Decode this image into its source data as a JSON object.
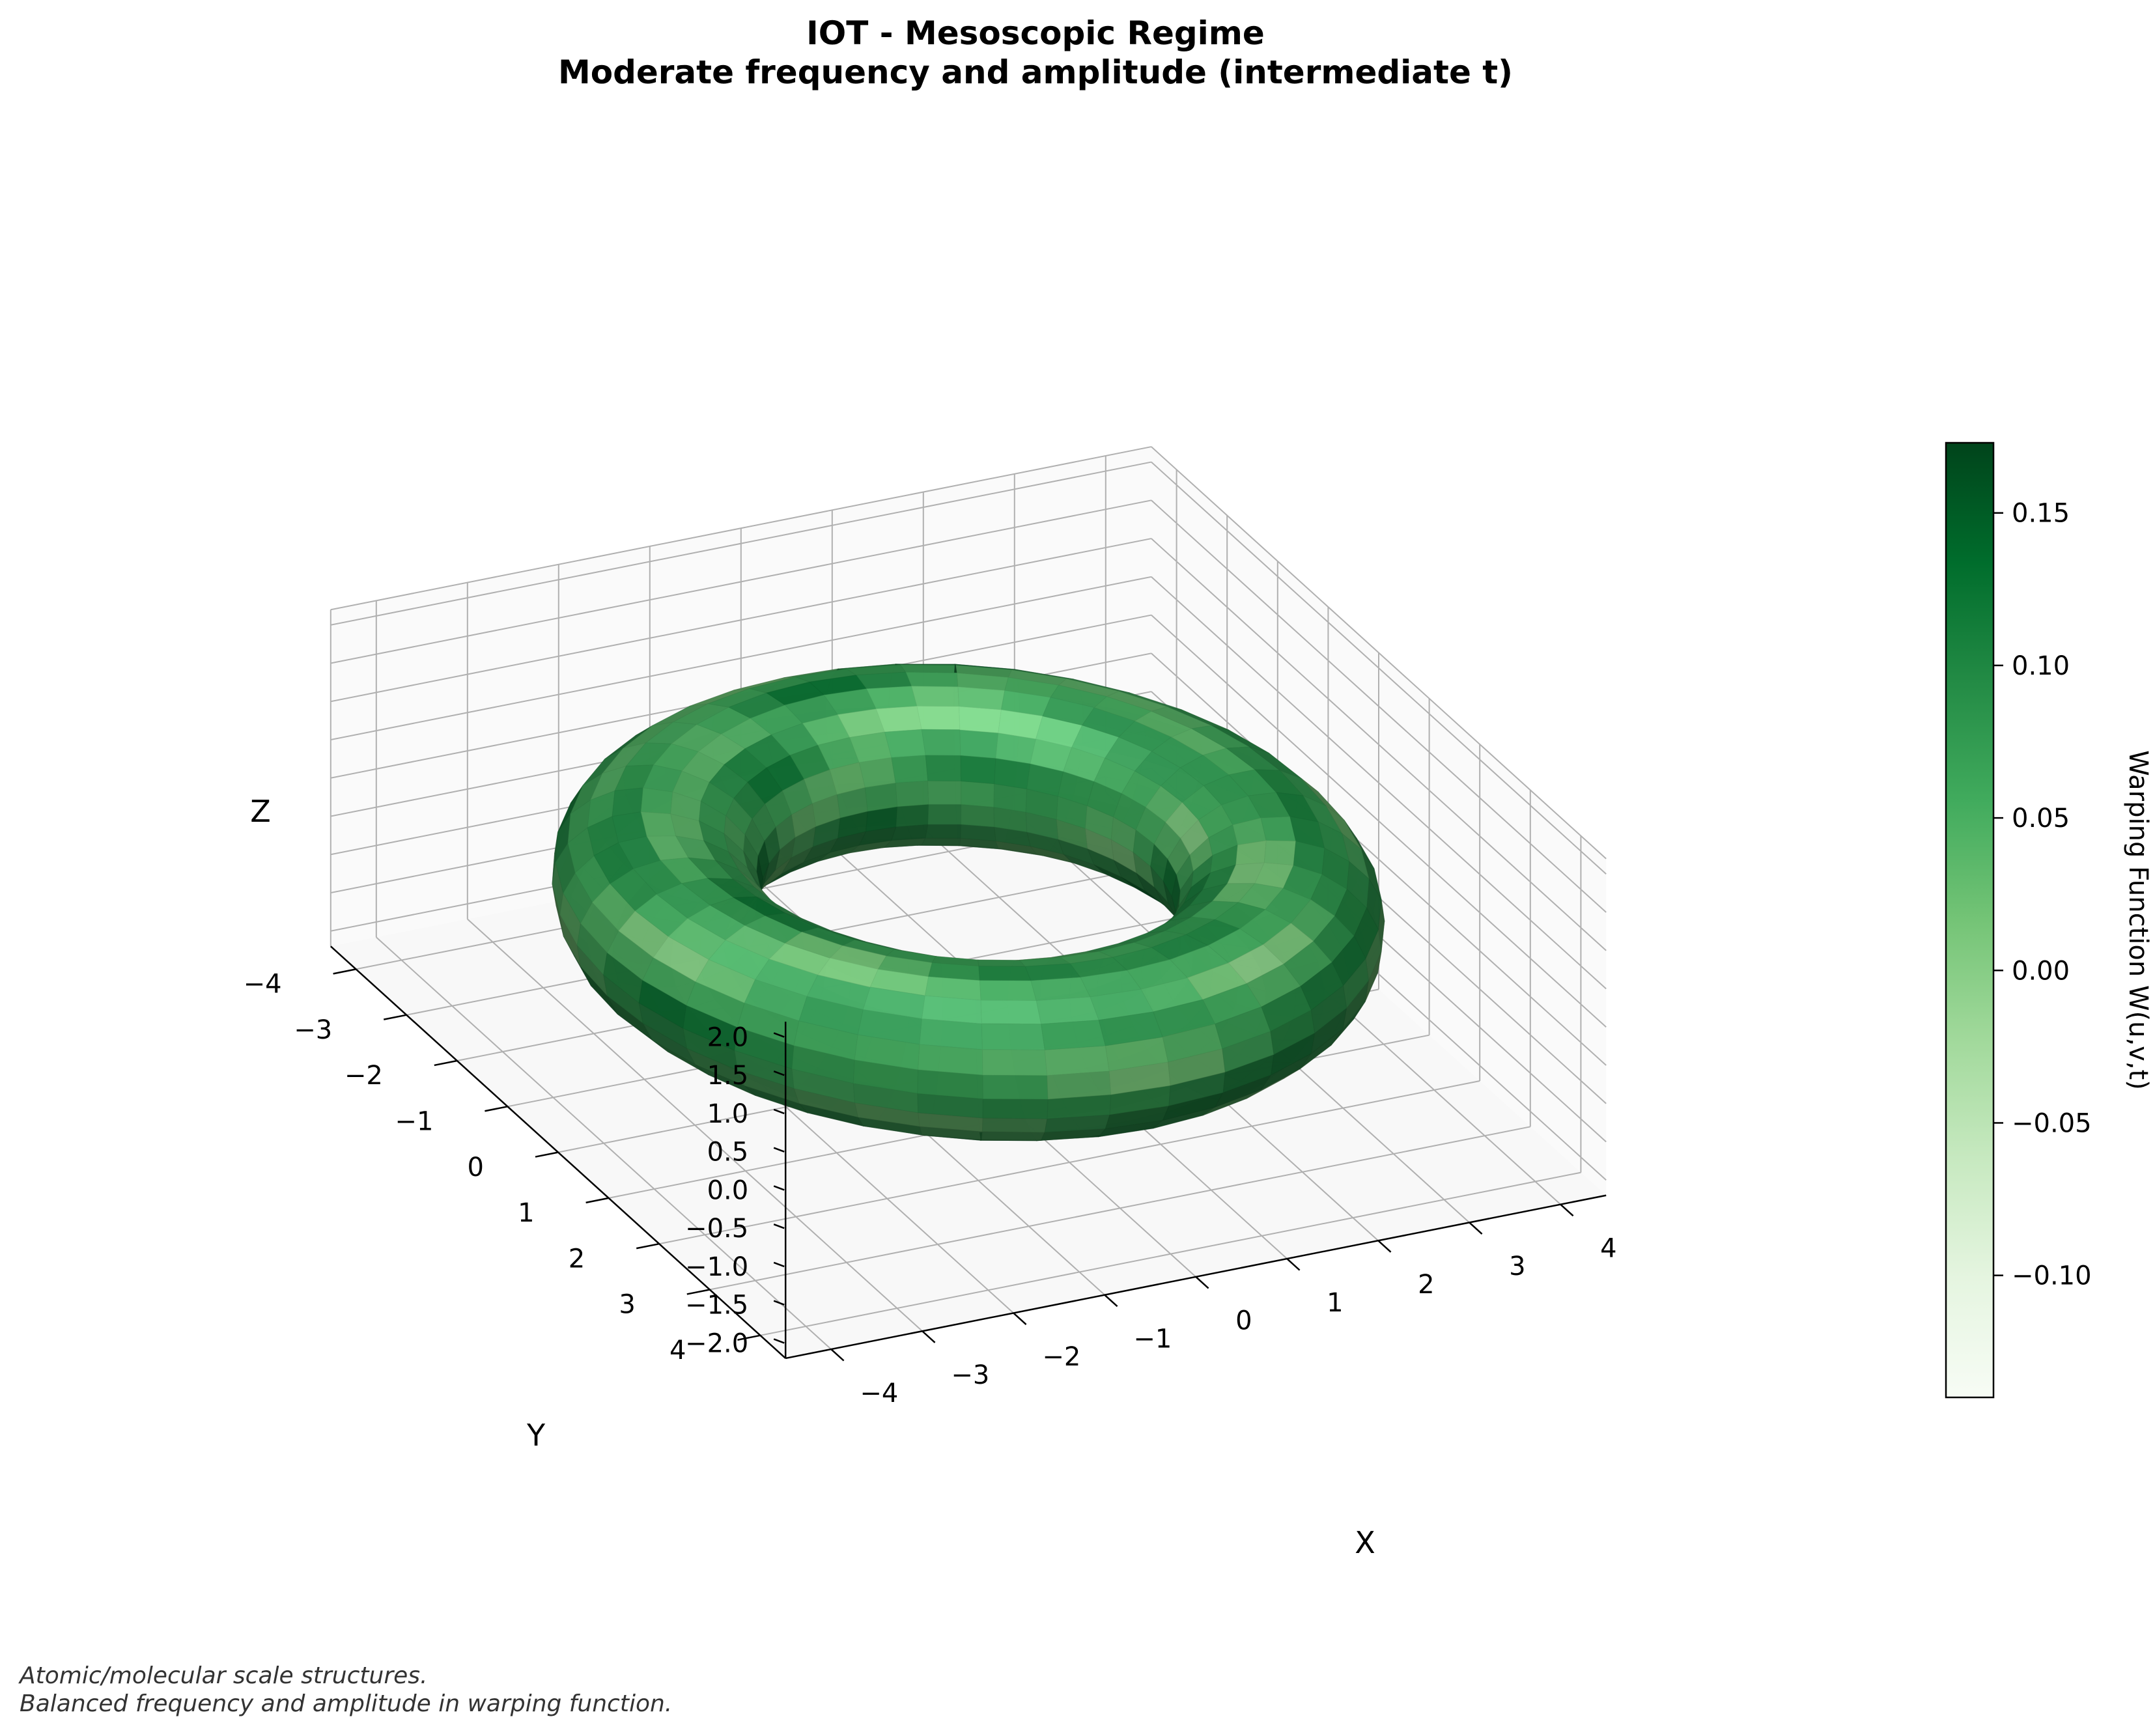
{
  "chart_data": {
    "type": "surface3d",
    "title": [
      "IOT - Mesoscopic Regime",
      "Moderate frequency and amplitude (intermediate t)"
    ],
    "xlabel": "X",
    "ylabel": "Y",
    "zlabel": "Z",
    "xlim": [
      -4.5,
      4.5
    ],
    "ylim": [
      -4.5,
      4.5
    ],
    "zlim": [
      -2.2,
      2.2
    ],
    "x_ticks": [
      -4,
      -3,
      -2,
      -1,
      0,
      1,
      2,
      3,
      4
    ],
    "y_ticks": [
      -4,
      -3,
      -2,
      -1,
      0,
      1,
      2,
      3,
      4
    ],
    "z_ticks": [
      -2.0,
      -1.5,
      -1.0,
      -0.5,
      0.0,
      0.5,
      1.0,
      1.5,
      2.0
    ],
    "x_tick_labels": [
      "4",
      "3",
      "2",
      "1",
      "0",
      "−1",
      "−2",
      "−3",
      "−4"
    ],
    "y_tick_labels": [
      "−4",
      "−3",
      "−2",
      "−1",
      "0",
      "1",
      "2",
      "3",
      "4"
    ],
    "z_tick_labels": [
      "−2.0",
      "−1.5",
      "−1.0",
      "−0.5",
      "0.0",
      "0.5",
      "1.0",
      "1.5",
      "2.0"
    ],
    "surface": {
      "shape": "torus",
      "major_radius": 3.0,
      "minor_radius": 1.0,
      "colormap": "Greens",
      "alpha": 0.8
    },
    "grid": true,
    "colorbar": {
      "label": "Warping Function W(u,v,t)",
      "min": -0.14,
      "max": 0.173,
      "ticks": [
        -0.1,
        -0.05,
        0.0,
        0.05,
        0.1,
        0.15
      ],
      "tick_labels": [
        "−0.10",
        "−0.05",
        "0.00",
        "0.05",
        "0.10",
        "0.15"
      ],
      "colors": [
        "#f7fcf5",
        "#e5f5e0",
        "#c7e9c0",
        "#a1d99b",
        "#74c476",
        "#41ab5d",
        "#238b45",
        "#006d2c",
        "#00441b"
      ]
    },
    "caption": [
      "Atomic/molecular scale structures.",
      "Balanced frequency and amplitude in warping function."
    ]
  }
}
